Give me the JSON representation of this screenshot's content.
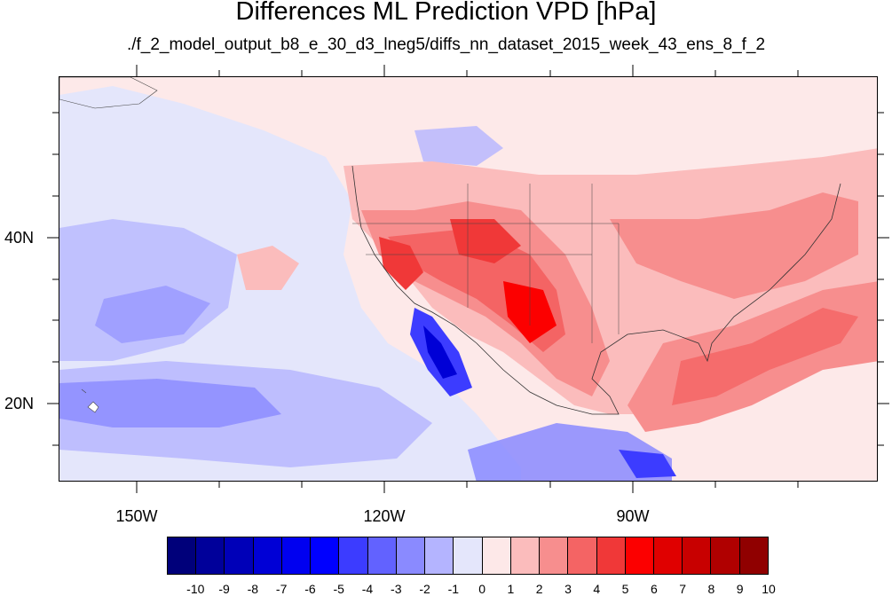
{
  "title": "Differences ML Prediction VPD [hPa]",
  "subtitle": "./f_2_model_output_b8_e_30_d3_lneg5/diffs_nn_dataset_2015_week_43_ens_8_f_2",
  "map": {
    "lon_labels": [
      "150W",
      "120W",
      "90W"
    ],
    "lat_labels": [
      "40N",
      "20N"
    ]
  },
  "colorbar": {
    "labels": [
      "-10",
      "-9",
      "-8",
      "-7",
      "-6",
      "-5",
      "-4",
      "-3",
      "-2",
      "-1",
      "0",
      "1",
      "2",
      "3",
      "4",
      "5",
      "6",
      "7",
      "8",
      "9",
      "10"
    ],
    "colors": [
      "#00007a",
      "#00009a",
      "#0000b8",
      "#0000d6",
      "#0000f0",
      "#0000ff",
      "#3c3cff",
      "#6262ff",
      "#8a8aff",
      "#b4b4ff",
      "#e4e6fb",
      "#fde8e8",
      "#fbbcbc",
      "#f78e8e",
      "#f46464",
      "#f03838",
      "#fc0000",
      "#e00000",
      "#c80000",
      "#b00000",
      "#900000"
    ]
  }
}
